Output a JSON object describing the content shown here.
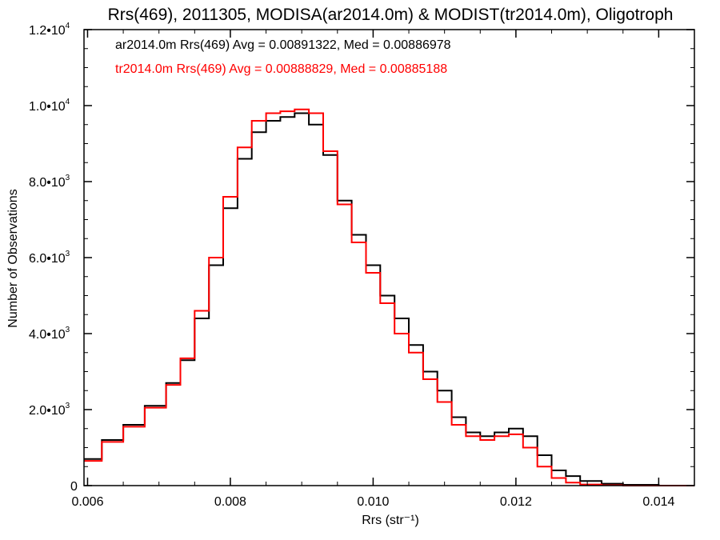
{
  "chart_data": {
    "type": "line",
    "title": "Rrs(469), 2011305, MODISA(ar2014.0m) & MODIST(tr2014.0m), Oligotroph",
    "xlabel": "Rrs (str⁻¹)",
    "ylabel": "Number of Observations",
    "xlim": [
      0.00595,
      0.0145
    ],
    "ylim": [
      0,
      12000
    ],
    "grid": false,
    "legend_position": "top-left",
    "x_ticks": [
      {
        "value": 0.006,
        "label": "0.006"
      },
      {
        "value": 0.008,
        "label": "0.008"
      },
      {
        "value": 0.01,
        "label": "0.010"
      },
      {
        "value": 0.012,
        "label": "0.012"
      },
      {
        "value": 0.014,
        "label": "0.014"
      }
    ],
    "y_ticks": [
      {
        "value": 0,
        "mantissa": "0",
        "exponent": ""
      },
      {
        "value": 2000,
        "mantissa": "2.0•1",
        "exponent": "3"
      },
      {
        "value": 4000,
        "mantissa": "4.0•1",
        "exponent": "3"
      },
      {
        "value": 6000,
        "mantissa": "6.0•1",
        "exponent": "3"
      },
      {
        "value": 8000,
        "mantissa": "8.0•1",
        "exponent": "3"
      },
      {
        "value": 10000,
        "mantissa": "1.0•1",
        "exponent": "4"
      },
      {
        "value": 12000,
        "mantissa": "1.2•1",
        "exponent": "4"
      }
    ],
    "series": [
      {
        "name": "ar2014.0m Rrs(469) Avg = 0.00891322, Med = 0.00886978",
        "color": "#000000",
        "x": [
          0.00595,
          0.0062,
          0.0065,
          0.0068,
          0.0071,
          0.0073,
          0.0075,
          0.0077,
          0.0079,
          0.0081,
          0.0083,
          0.0085,
          0.0087,
          0.0089,
          0.0091,
          0.0093,
          0.0095,
          0.0097,
          0.0099,
          0.0101,
          0.0103,
          0.0105,
          0.0107,
          0.0109,
          0.0111,
          0.0113,
          0.0115,
          0.0117,
          0.0119,
          0.0121,
          0.0123,
          0.0125,
          0.0127,
          0.0129,
          0.0132,
          0.0135,
          0.014,
          0.0145
        ],
        "y": [
          700,
          1200,
          1600,
          2100,
          2700,
          3300,
          4400,
          5800,
          7300,
          8600,
          9300,
          9600,
          9700,
          9800,
          9500,
          8700,
          7500,
          6600,
          5800,
          5000,
          4400,
          3700,
          3000,
          2500,
          1800,
          1400,
          1300,
          1400,
          1500,
          1300,
          800,
          400,
          250,
          120,
          50,
          20,
          0,
          0
        ]
      },
      {
        "name": "tr2014.0m Rrs(469) Avg = 0.00888829, Med = 0.00885188",
        "color": "#ff0000",
        "x": [
          0.00595,
          0.0062,
          0.0065,
          0.0068,
          0.0071,
          0.0073,
          0.0075,
          0.0077,
          0.0079,
          0.0081,
          0.0083,
          0.0085,
          0.0087,
          0.0089,
          0.0091,
          0.0093,
          0.0095,
          0.0097,
          0.0099,
          0.0101,
          0.0103,
          0.0105,
          0.0107,
          0.0109,
          0.0111,
          0.0113,
          0.0115,
          0.0117,
          0.0119,
          0.0121,
          0.0123,
          0.0125,
          0.0127,
          0.0129,
          0.0132,
          0.0135,
          0.014,
          0.0145
        ],
        "y": [
          650,
          1150,
          1550,
          2050,
          2650,
          3350,
          4600,
          6000,
          7600,
          8900,
          9600,
          9800,
          9850,
          9900,
          9800,
          8800,
          7400,
          6400,
          5600,
          4800,
          4000,
          3500,
          2800,
          2200,
          1600,
          1300,
          1200,
          1300,
          1350,
          1000,
          500,
          200,
          80,
          30,
          10,
          0,
          0,
          0
        ]
      }
    ]
  }
}
